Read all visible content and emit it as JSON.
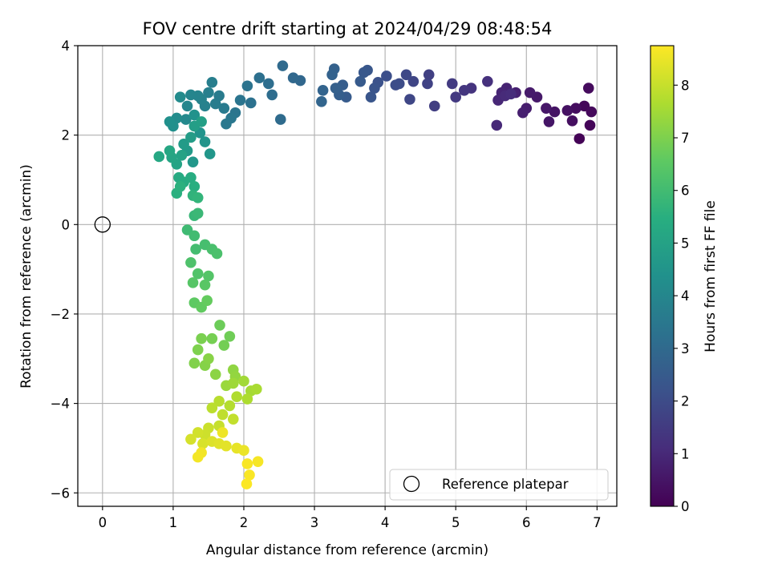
{
  "chart_data": {
    "type": "scatter",
    "title": "FOV centre drift starting at 2024/04/29 08:48:54",
    "xlabel": "Angular distance from reference (arcmin)",
    "ylabel": "Rotation from reference (arcmin)",
    "xlim": [
      -0.35,
      7.28
    ],
    "ylim": [
      -6.3,
      4.0
    ],
    "xticks": [
      0,
      1,
      2,
      3,
      4,
      5,
      6,
      7
    ],
    "xtick_labels": [
      "0",
      "1",
      "2",
      "3",
      "4",
      "5",
      "6",
      "7"
    ],
    "yticks": [
      -6,
      -4,
      -2,
      0,
      2,
      4
    ],
    "ytick_labels": [
      "−6",
      "−4",
      "−2",
      "0",
      "2",
      "4"
    ],
    "grid": true,
    "colormap": "viridis",
    "colorbar": {
      "label": "Hours from first FF file",
      "range": [
        0,
        8.75
      ],
      "ticks": [
        0,
        1,
        2,
        3,
        4,
        5,
        6,
        7,
        8
      ],
      "tick_labels": [
        "0",
        "1",
        "2",
        "3",
        "4",
        "5",
        "6",
        "7",
        "8"
      ]
    },
    "legend": {
      "placement": "lower-right",
      "entries": [
        "Reference platepar"
      ]
    },
    "reference_point": {
      "x": 0,
      "y": 0,
      "label": "Reference platepar"
    },
    "points": [
      [
        6.75,
        1.92,
        0.05
      ],
      [
        6.9,
        2.22,
        0.1
      ],
      [
        6.82,
        2.65,
        0.15
      ],
      [
        6.92,
        2.52,
        0.2
      ],
      [
        6.88,
        3.05,
        0.25
      ],
      [
        6.7,
        2.6,
        0.3
      ],
      [
        6.65,
        2.32,
        0.35
      ],
      [
        6.58,
        2.55,
        0.4
      ],
      [
        6.4,
        2.52,
        0.45
      ],
      [
        6.32,
        2.3,
        0.5
      ],
      [
        6.28,
        2.6,
        0.55
      ],
      [
        6.15,
        2.85,
        0.6
      ],
      [
        6.05,
        2.95,
        0.65
      ],
      [
        6.0,
        2.6,
        0.7
      ],
      [
        5.95,
        2.5,
        0.75
      ],
      [
        5.85,
        2.95,
        0.8
      ],
      [
        5.72,
        3.05,
        0.85
      ],
      [
        5.65,
        2.95,
        0.9
      ],
      [
        5.6,
        2.78,
        0.95
      ],
      [
        5.58,
        2.22,
        1.0
      ],
      [
        5.7,
        2.88,
        1.05
      ],
      [
        5.78,
        2.92,
        1.1
      ],
      [
        5.45,
        3.2,
        1.2
      ],
      [
        5.22,
        3.05,
        1.3
      ],
      [
        5.12,
        3.0,
        1.35
      ],
      [
        5.0,
        2.85,
        1.45
      ],
      [
        4.95,
        3.15,
        1.5
      ],
      [
        4.7,
        2.65,
        1.6
      ],
      [
        4.62,
        3.35,
        1.65
      ],
      [
        4.6,
        3.15,
        1.7
      ],
      [
        4.4,
        3.2,
        1.8
      ],
      [
        4.35,
        2.8,
        1.85
      ],
      [
        4.3,
        3.35,
        1.9
      ],
      [
        4.2,
        3.15,
        2.0
      ],
      [
        4.15,
        3.12,
        2.05
      ],
      [
        4.02,
        3.32,
        2.1
      ],
      [
        3.9,
        3.18,
        2.2
      ],
      [
        3.85,
        3.05,
        2.25
      ],
      [
        3.8,
        2.85,
        2.3
      ],
      [
        3.75,
        3.45,
        2.35
      ],
      [
        3.7,
        3.4,
        2.4
      ],
      [
        3.65,
        3.2,
        2.45
      ],
      [
        3.45,
        2.85,
        2.5
      ],
      [
        3.4,
        3.12,
        2.55
      ],
      [
        3.35,
        2.9,
        2.6
      ],
      [
        3.3,
        3.05,
        2.65
      ],
      [
        3.28,
        3.48,
        2.7
      ],
      [
        3.25,
        3.35,
        2.75
      ],
      [
        3.12,
        3.0,
        2.8
      ],
      [
        3.1,
        2.75,
        2.85
      ],
      [
        2.8,
        3.22,
        2.9
      ],
      [
        2.7,
        3.28,
        2.95
      ],
      [
        2.55,
        3.55,
        3.0
      ],
      [
        2.52,
        2.35,
        3.05
      ],
      [
        2.4,
        2.9,
        3.1
      ],
      [
        2.35,
        3.15,
        3.15
      ],
      [
        2.22,
        3.28,
        3.2
      ],
      [
        2.1,
        2.72,
        3.25
      ],
      [
        2.05,
        3.1,
        3.3
      ],
      [
        1.95,
        2.78,
        3.35
      ],
      [
        1.88,
        2.5,
        3.4
      ],
      [
        1.82,
        2.38,
        3.45
      ],
      [
        1.75,
        2.25,
        3.5
      ],
      [
        1.72,
        2.6,
        3.55
      ],
      [
        1.65,
        2.88,
        3.6
      ],
      [
        1.6,
        2.7,
        3.65
      ],
      [
        1.55,
        3.18,
        3.7
      ],
      [
        1.5,
        2.95,
        3.75
      ],
      [
        1.45,
        2.65,
        3.8
      ],
      [
        1.4,
        2.8,
        3.85
      ],
      [
        1.35,
        2.88,
        3.9
      ],
      [
        1.25,
        2.9,
        3.95
      ],
      [
        1.2,
        2.65,
        4.0
      ],
      [
        1.18,
        2.35,
        4.1
      ],
      [
        1.1,
        2.85,
        4.15
      ],
      [
        1.05,
        2.38,
        4.2
      ],
      [
        1.0,
        2.2,
        4.3
      ],
      [
        0.95,
        2.3,
        4.35
      ],
      [
        1.3,
        2.45,
        4.4
      ],
      [
        1.38,
        2.05,
        4.45
      ],
      [
        1.45,
        1.85,
        4.5
      ],
      [
        1.52,
        1.58,
        4.55
      ],
      [
        1.28,
        1.4,
        4.6
      ],
      [
        1.2,
        1.65,
        4.7
      ],
      [
        1.15,
        1.8,
        4.75
      ],
      [
        1.25,
        1.95,
        4.8
      ],
      [
        1.3,
        2.2,
        4.85
      ],
      [
        1.4,
        2.3,
        4.9
      ],
      [
        1.12,
        1.55,
        5.0
      ],
      [
        1.05,
        1.35,
        5.05
      ],
      [
        0.98,
        1.5,
        5.1
      ],
      [
        0.95,
        1.65,
        5.15
      ],
      [
        0.8,
        1.52,
        5.2
      ],
      [
        1.08,
        1.05,
        5.3
      ],
      [
        1.15,
        0.95,
        5.35
      ],
      [
        1.25,
        1.05,
        5.4
      ],
      [
        1.3,
        0.85,
        5.45
      ],
      [
        1.05,
        0.7,
        5.5
      ],
      [
        1.1,
        0.85,
        5.55
      ],
      [
        1.28,
        0.65,
        5.65
      ],
      [
        1.35,
        0.6,
        5.7
      ],
      [
        1.3,
        0.2,
        5.8
      ],
      [
        1.35,
        0.25,
        5.85
      ],
      [
        1.2,
        -0.12,
        5.95
      ],
      [
        1.3,
        -0.25,
        6.0
      ],
      [
        1.32,
        -0.55,
        6.05
      ],
      [
        1.45,
        -0.45,
        6.1
      ],
      [
        1.55,
        -0.55,
        6.15
      ],
      [
        1.62,
        -0.65,
        6.2
      ],
      [
        1.25,
        -0.85,
        6.25
      ],
      [
        1.35,
        -1.1,
        6.3
      ],
      [
        1.5,
        -1.15,
        6.35
      ],
      [
        1.28,
        -1.3,
        6.4
      ],
      [
        1.45,
        -1.35,
        6.45
      ],
      [
        1.3,
        -1.75,
        6.55
      ],
      [
        1.4,
        -1.85,
        6.6
      ],
      [
        1.48,
        -1.7,
        6.65
      ],
      [
        1.66,
        -2.25,
        6.75
      ],
      [
        1.8,
        -2.5,
        6.8
      ],
      [
        1.72,
        -2.7,
        6.85
      ],
      [
        1.55,
        -2.55,
        6.9
      ],
      [
        1.4,
        -2.55,
        6.95
      ],
      [
        1.35,
        -2.8,
        7.0
      ],
      [
        1.3,
        -3.1,
        7.05
      ],
      [
        1.45,
        -3.15,
        7.1
      ],
      [
        1.5,
        -3.0,
        7.15
      ],
      [
        1.6,
        -3.35,
        7.2
      ],
      [
        1.85,
        -3.25,
        7.25
      ],
      [
        1.88,
        -3.4,
        7.3
      ],
      [
        1.75,
        -3.6,
        7.4
      ],
      [
        1.85,
        -3.55,
        7.45
      ],
      [
        2.0,
        -3.5,
        7.5
      ],
      [
        2.1,
        -3.72,
        7.55
      ],
      [
        2.18,
        -3.68,
        7.6
      ],
      [
        2.05,
        -3.9,
        7.65
      ],
      [
        1.9,
        -3.85,
        7.7
      ],
      [
        1.8,
        -4.05,
        7.75
      ],
      [
        1.65,
        -3.95,
        7.8
      ],
      [
        1.55,
        -4.1,
        7.85
      ],
      [
        1.7,
        -4.25,
        7.9
      ],
      [
        1.85,
        -4.35,
        7.95
      ],
      [
        1.65,
        -4.5,
        8.0
      ],
      [
        1.5,
        -4.55,
        8.05
      ],
      [
        1.45,
        -4.7,
        8.1
      ],
      [
        1.35,
        -4.65,
        8.15
      ],
      [
        1.25,
        -4.8,
        8.2
      ],
      [
        1.42,
        -4.9,
        8.25
      ],
      [
        1.55,
        -4.85,
        8.3
      ],
      [
        1.65,
        -4.9,
        8.35
      ],
      [
        1.75,
        -4.95,
        8.4
      ],
      [
        1.9,
        -5.0,
        8.45
      ],
      [
        2.0,
        -5.05,
        8.5
      ],
      [
        1.7,
        -4.65,
        8.55
      ],
      [
        1.4,
        -5.1,
        8.6
      ],
      [
        1.35,
        -5.2,
        8.62
      ],
      [
        2.2,
        -5.3,
        8.65
      ],
      [
        2.05,
        -5.35,
        8.68
      ],
      [
        2.08,
        -5.6,
        8.7
      ],
      [
        2.04,
        -5.8,
        8.72
      ]
    ]
  }
}
